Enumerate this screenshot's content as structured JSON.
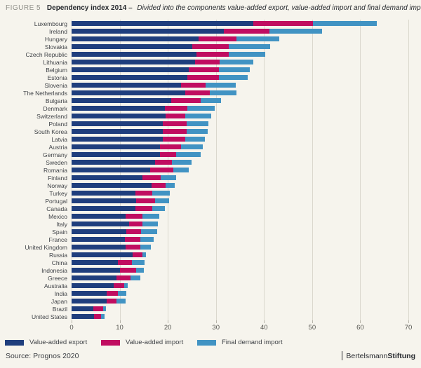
{
  "header": {
    "figure_label": "FIGURE 5",
    "title": "Dependency index 2014 –",
    "subtitle": "Divided into the components value-added export, value-added import and final demand import"
  },
  "colors": {
    "background": "#f6f4ed",
    "gridline": "#dbd8ce",
    "value_added_export": "#1f3e7d",
    "value_added_import": "#c00d60",
    "final_demand_import": "#4193c3"
  },
  "chart_data": {
    "type": "bar",
    "orientation": "horizontal",
    "stacked": true,
    "title": "Dependency index 2014",
    "xlabel": "",
    "ylabel": "",
    "xlim": [
      0,
      70
    ],
    "xticks": [
      0,
      10,
      20,
      30,
      40,
      50,
      60,
      70
    ],
    "grid": true,
    "legend_position": "bottom",
    "categories": [
      "Luxembourg",
      "Ireland",
      "Hungary",
      "Slovakia",
      "Czech Republic",
      "Lithuania",
      "Belgium",
      "Estonia",
      "Slovenia",
      "The Netherlands",
      "Bulgaria",
      "Denmark",
      "Switzerland",
      "Poland",
      "South Korea",
      "Latvia",
      "Austria",
      "Germany",
      "Sweden",
      "Romania",
      "Finland",
      "Norway",
      "Turkey",
      "Portugal",
      "Canada",
      "Mexico",
      "Italy",
      "Spain",
      "France",
      "United Kingdom",
      "Russia",
      "China",
      "Indonesia",
      "Greece",
      "Australia",
      "India",
      "Japan",
      "Brazil",
      "United States"
    ],
    "series": [
      {
        "name": "Value-added export",
        "color": "#1f3e7d",
        "values": [
          37.7,
          31.7,
          26.4,
          25.1,
          25.9,
          25.7,
          24.3,
          24.1,
          22.8,
          23.6,
          20.7,
          19.4,
          19.6,
          19.0,
          19.0,
          18.9,
          18.4,
          18.4,
          17.3,
          16.4,
          14.7,
          16.6,
          13.3,
          13.4,
          13.2,
          11.3,
          12.0,
          11.4,
          11.1,
          11.2,
          12.7,
          9.6,
          10.1,
          9.3,
          8.7,
          7.3,
          7.3,
          4.5,
          4.6
        ]
      },
      {
        "name": "Value-added import",
        "color": "#c00d60",
        "values": [
          12.5,
          9.4,
          7.8,
          7.6,
          6.8,
          5.1,
          6.3,
          6.5,
          5.1,
          5.2,
          6.2,
          4.7,
          4.0,
          4.9,
          4.9,
          4.7,
          4.4,
          3.4,
          3.5,
          4.8,
          3.8,
          3.0,
          3.5,
          3.9,
          3.5,
          3.5,
          2.8,
          3.1,
          3.2,
          3.1,
          2.1,
          3.0,
          3.3,
          2.9,
          2.2,
          2.3,
          2.1,
          2.0,
          1.5
        ]
      },
      {
        "name": "Final demand import",
        "color": "#4193c3",
        "values": [
          13.3,
          10.9,
          9.0,
          8.5,
          7.6,
          6.9,
          6.5,
          6.0,
          6.3,
          5.4,
          4.2,
          5.6,
          5.4,
          4.5,
          4.4,
          4.1,
          4.5,
          5.0,
          4.1,
          3.2,
          3.2,
          1.9,
          3.6,
          3.0,
          2.7,
          3.4,
          3.2,
          3.3,
          2.8,
          2.2,
          0.7,
          2.6,
          1.6,
          2.1,
          0.8,
          1.8,
          1.9,
          0.6,
          0.7
        ]
      }
    ]
  },
  "legend": {
    "items": [
      {
        "label": "Value-added export",
        "color": "#1f3e7d"
      },
      {
        "label": "Value-added import",
        "color": "#c00d60"
      },
      {
        "label": "Final demand import",
        "color": "#4193c3"
      }
    ]
  },
  "footer": {
    "source": "Source: Prognos 2020",
    "brand_regular": "Bertelsmann",
    "brand_bold": "Stiftung"
  }
}
